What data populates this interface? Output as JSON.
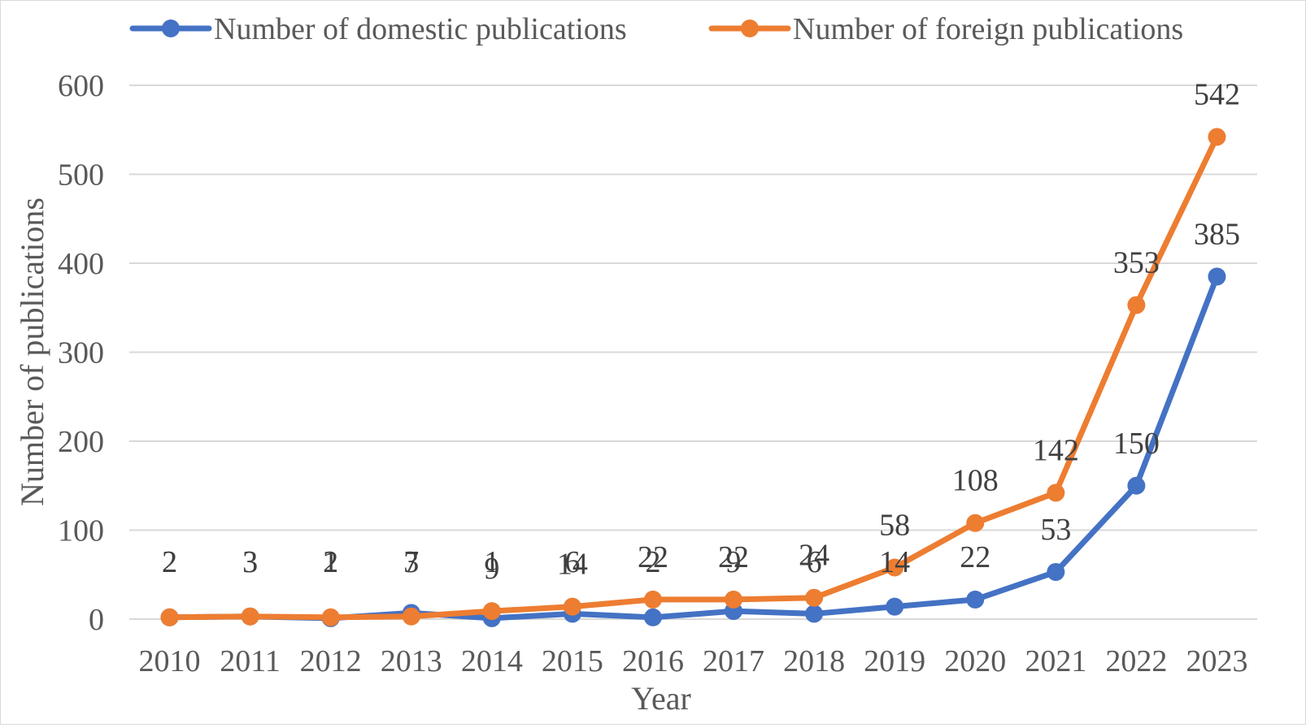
{
  "chart_data": {
    "type": "line",
    "title": "",
    "xlabel": "Year",
    "ylabel": "Number of publications",
    "categories": [
      "2010",
      "2011",
      "2012",
      "2013",
      "2014",
      "2015",
      "2016",
      "2017",
      "2018",
      "2019",
      "2020",
      "2021",
      "2022",
      "2023"
    ],
    "series": [
      {
        "name": "Number of domestic publications",
        "color": "#4472c4",
        "values": [
          2,
          3,
          1,
          7,
          1,
          6,
          2,
          9,
          6,
          14,
          22,
          53,
          150,
          385
        ]
      },
      {
        "name": "Number of foreign publications",
        "color": "#ed7d31",
        "values": [
          2,
          3,
          2,
          3,
          9,
          14,
          22,
          22,
          24,
          58,
          108,
          142,
          353,
          542
        ]
      }
    ],
    "ylim": [
      0,
      600
    ],
    "yticks": [
      0,
      100,
      200,
      300,
      400,
      500,
      600
    ],
    "grid": true,
    "legend_position": "top",
    "data_labels": true
  }
}
